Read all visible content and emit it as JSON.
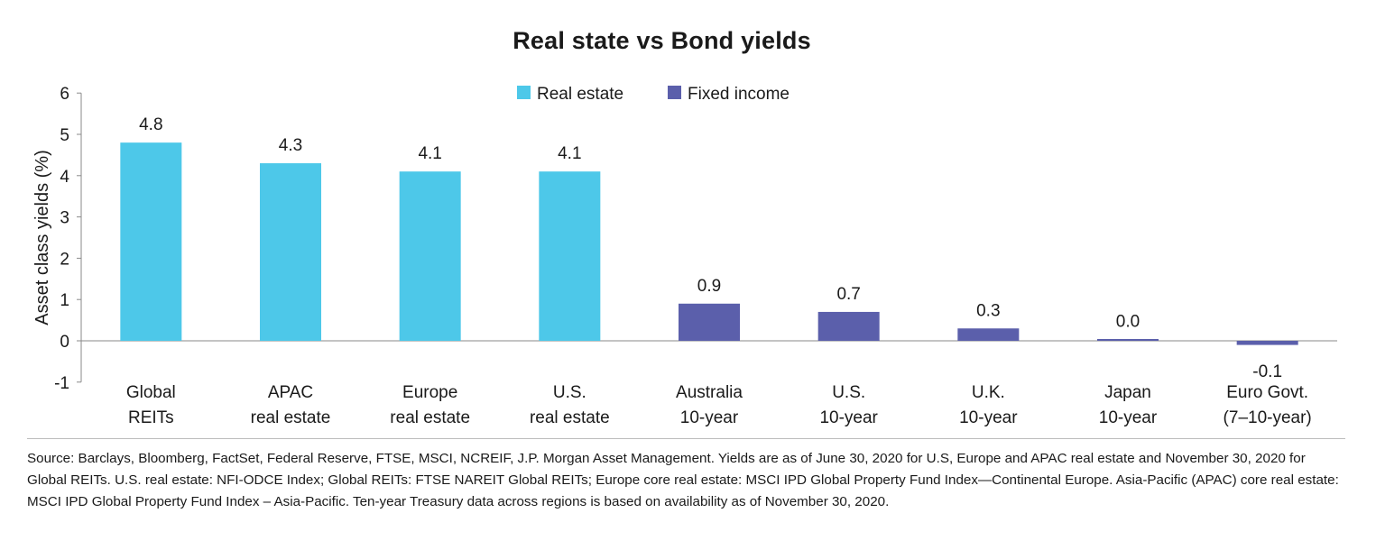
{
  "chart_data": {
    "type": "bar",
    "title": "Real state vs Bond yields",
    "ylabel": "Asset class yields (%)",
    "xlabel": "",
    "ylim": [
      -1,
      6
    ],
    "yticks": [
      "-1",
      "0",
      "1",
      "2",
      "3",
      "4",
      "5",
      "6"
    ],
    "grid": false,
    "legend_position": "top-center",
    "legend": [
      {
        "name": "Real estate",
        "color": "#4dc8e9"
      },
      {
        "name": "Fixed income",
        "color": "#5b5fab"
      }
    ],
    "categories": [
      [
        "Global",
        "REITs"
      ],
      [
        "APAC",
        "real estate"
      ],
      [
        "Europe",
        "real estate"
      ],
      [
        "U.S.",
        "real estate"
      ],
      [
        "Australia",
        "10-year"
      ],
      [
        "U.S.",
        "10-year"
      ],
      [
        "U.K.",
        "10-year"
      ],
      [
        "Japan",
        "10-year"
      ],
      [
        "Euro Govt.",
        "(7–10-year)"
      ]
    ],
    "values": [
      4.8,
      4.3,
      4.1,
      4.1,
      0.9,
      0.7,
      0.3,
      0.03,
      -0.1
    ],
    "value_labels": [
      "4.8",
      "4.3",
      "4.1",
      "4.1",
      "0.9",
      "0.7",
      "0.3",
      "0.0",
      "-0.1"
    ],
    "series_index": [
      0,
      0,
      0,
      0,
      1,
      1,
      1,
      1,
      1
    ]
  },
  "source_note": "Source: Barclays, Bloomberg, FactSet, Federal Reserve, FTSE, MSCI, NCREIF, J.P. Morgan Asset Management. Yields are as of June 30, 2020 for U.S, Europe and APAC real estate and November 30, 2020 for Global REITs. U.S. real estate: NFI-ODCE Index; Global REITs: FTSE NAREIT Global REITs; Europe core real estate: MSCI IPD Global Property Fund Index—Continental Europe. Asia-Pacific (APAC) core real estate: MSCI IPD Global Property Fund Index – Asia-Pacific. Ten-year Treasury data across regions is based on availability as of November 30, 2020."
}
